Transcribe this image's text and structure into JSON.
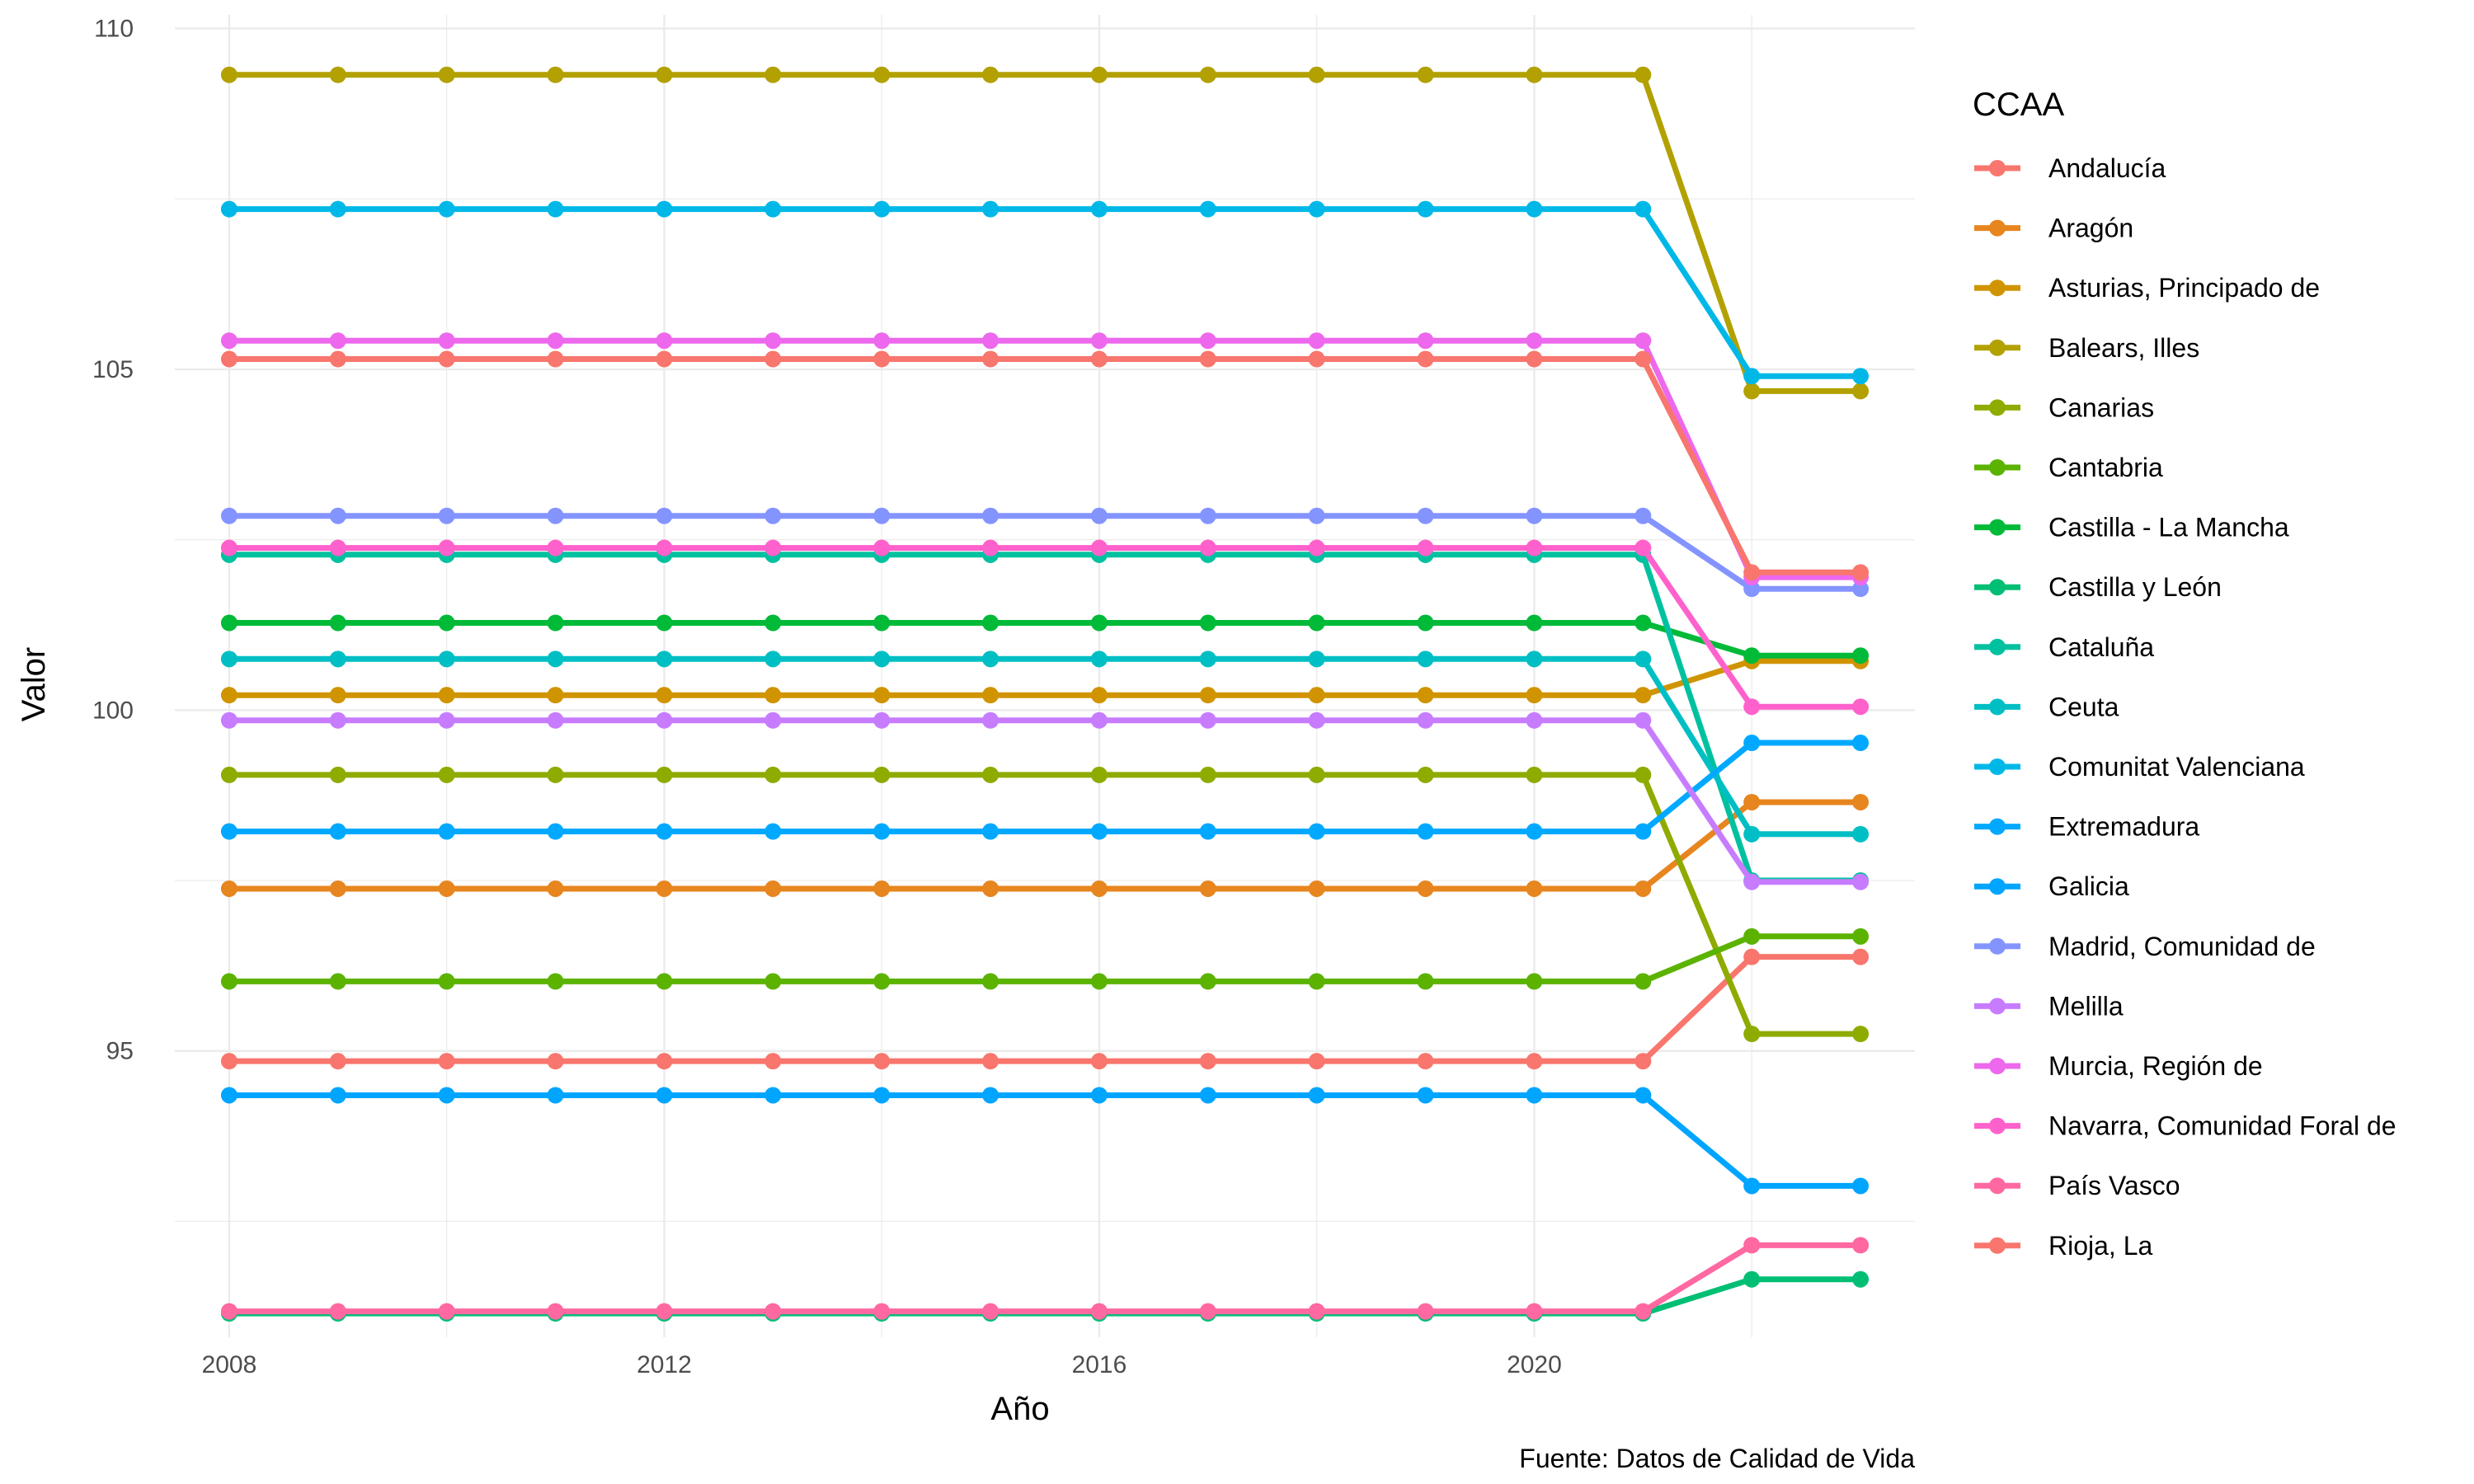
{
  "chart_data": {
    "type": "line",
    "xlabel": "Año",
    "ylabel": "Valor",
    "caption": "Fuente: Datos de Calidad de Vida",
    "legend_title": "CCAA",
    "legend_position": "right",
    "grid": true,
    "xlim": [
      2007.5,
      2023.5
    ],
    "ylim": [
      90.8,
      110.2
    ],
    "x_ticks": [
      2008,
      2012,
      2016,
      2020
    ],
    "y_ticks": [
      95,
      100,
      105,
      110
    ],
    "x": [
      2008,
      2009,
      2010,
      2011,
      2012,
      2013,
      2014,
      2015,
      2016,
      2017,
      2018,
      2019,
      2020,
      2021,
      2022,
      2023
    ],
    "series": [
      {
        "name": "Andalucía",
        "color": "#F8766D",
        "start": 94.85,
        "end": 96.38
      },
      {
        "name": "Aragón",
        "color": "#E7851E",
        "start": 97.38,
        "end": 98.65
      },
      {
        "name": "Asturias, Principado de",
        "color": "#D09400",
        "start": 100.22,
        "end": 100.72
      },
      {
        "name": "Balears, Illes",
        "color": "#B2A100",
        "start": 109.32,
        "end": 104.68
      },
      {
        "name": "Canarias",
        "color": "#8EAB00",
        "start": 99.05,
        "end": 95.25
      },
      {
        "name": "Cantabria",
        "color": "#5BB300",
        "start": 96.02,
        "end": 96.68
      },
      {
        "name": "Castilla - La Mancha",
        "color": "#00BA38",
        "start": 101.28,
        "end": 100.8
      },
      {
        "name": "Castilla y León",
        "color": "#00BF74",
        "start": 91.15,
        "end": 91.65
      },
      {
        "name": "Cataluña",
        "color": "#00C19F",
        "start": 102.28,
        "end": 97.5
      },
      {
        "name": "Ceuta",
        "color": "#00BFC4",
        "start": 100.75,
        "end": 98.18
      },
      {
        "name": "Comunitat Valenciana",
        "color": "#00B8E7",
        "start": 107.35,
        "end": 104.9
      },
      {
        "name": "Extremadura",
        "color": "#00A9FF",
        "start": 98.22,
        "end": 99.52
      },
      {
        "name": "Galicia",
        "color": "#00A5FF",
        "start": 94.35,
        "end": 93.02
      },
      {
        "name": "Madrid, Comunidad de",
        "color": "#8494FF",
        "start": 102.85,
        "end": 101.78
      },
      {
        "name": "Melilla",
        "color": "#C77CFF",
        "start": 99.85,
        "end": 97.48
      },
      {
        "name": "Murcia, Región de",
        "color": "#ED68ED",
        "start": 105.42,
        "end": 101.95
      },
      {
        "name": "Navarra, Comunidad Foral de",
        "color": "#FF61CC",
        "start": 102.38,
        "end": 100.05
      },
      {
        "name": "País Vasco",
        "color": "#FF68A1",
        "start": 91.18,
        "end": 92.15
      },
      {
        "name": "Rioja, La",
        "color": "#F8766D",
        "start": 105.15,
        "end": 102.02
      }
    ]
  }
}
